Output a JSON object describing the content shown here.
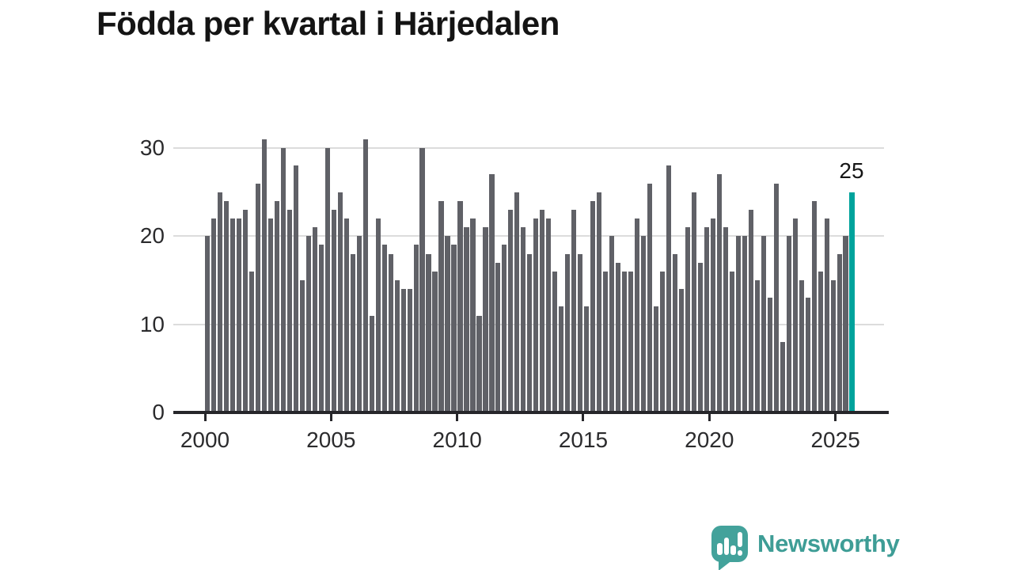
{
  "title": "Födda per kvartal i Härjedalen",
  "chart_data": {
    "type": "bar",
    "title": "Födda per kvartal i Härjedalen",
    "categories": [
      "2000-Q1",
      "2000-Q2",
      "2000-Q3",
      "2000-Q4",
      "2001-Q1",
      "2001-Q2",
      "2001-Q3",
      "2001-Q4",
      "2002-Q1",
      "2002-Q2",
      "2002-Q3",
      "2002-Q4",
      "2003-Q1",
      "2003-Q2",
      "2003-Q3",
      "2003-Q4",
      "2004-Q1",
      "2004-Q2",
      "2004-Q3",
      "2004-Q4",
      "2005-Q1",
      "2005-Q2",
      "2005-Q3",
      "2005-Q4",
      "2006-Q1",
      "2006-Q2",
      "2006-Q3",
      "2006-Q4",
      "2007-Q1",
      "2007-Q2",
      "2007-Q3",
      "2007-Q4",
      "2008-Q1",
      "2008-Q2",
      "2008-Q3",
      "2008-Q4",
      "2009-Q1",
      "2009-Q2",
      "2009-Q3",
      "2009-Q4",
      "2010-Q1",
      "2010-Q2",
      "2010-Q3",
      "2010-Q4",
      "2011-Q1",
      "2011-Q2",
      "2011-Q3",
      "2011-Q4",
      "2012-Q1",
      "2012-Q2",
      "2012-Q3",
      "2012-Q4",
      "2013-Q1",
      "2013-Q2",
      "2013-Q3",
      "2013-Q4",
      "2014-Q1",
      "2014-Q2",
      "2014-Q3",
      "2014-Q4",
      "2015-Q1",
      "2015-Q2",
      "2015-Q3",
      "2015-Q4",
      "2016-Q1",
      "2016-Q2",
      "2016-Q3",
      "2016-Q4",
      "2017-Q1",
      "2017-Q2",
      "2017-Q3",
      "2017-Q4",
      "2018-Q1",
      "2018-Q2",
      "2018-Q3",
      "2018-Q4",
      "2019-Q1",
      "2019-Q2",
      "2019-Q3",
      "2019-Q4",
      "2020-Q1",
      "2020-Q2",
      "2020-Q3",
      "2020-Q4",
      "2021-Q1",
      "2021-Q2",
      "2021-Q3",
      "2021-Q4",
      "2022-Q1",
      "2022-Q2",
      "2022-Q3",
      "2022-Q4",
      "2023-Q1",
      "2023-Q2",
      "2023-Q3",
      "2023-Q4",
      "2024-Q1",
      "2024-Q2",
      "2024-Q3",
      "2024-Q4",
      "2025-Q1",
      "2025-Q2",
      "2025-Q3"
    ],
    "values": [
      20,
      22,
      25,
      24,
      22,
      22,
      23,
      16,
      26,
      31,
      22,
      24,
      30,
      23,
      28,
      15,
      20,
      21,
      19,
      30,
      23,
      25,
      22,
      18,
      20,
      31,
      11,
      22,
      19,
      18,
      15,
      14,
      14,
      19,
      30,
      18,
      16,
      24,
      20,
      19,
      24,
      21,
      22,
      11,
      21,
      27,
      17,
      19,
      23,
      25,
      21,
      18,
      22,
      23,
      22,
      16,
      12,
      18,
      23,
      18,
      12,
      24,
      25,
      16,
      20,
      17,
      16,
      16,
      22,
      20,
      26,
      12,
      16,
      28,
      18,
      14,
      21,
      25,
      17,
      21,
      22,
      27,
      21,
      16,
      20,
      20,
      23,
      15,
      20,
      13,
      26,
      8,
      20,
      22,
      15,
      13,
      24,
      16,
      22,
      15,
      18,
      20,
      25
    ],
    "highlight_index": 102,
    "annotation_label": "25",
    "y_ticks": [
      0,
      10,
      20,
      30
    ],
    "y_gridlines": [
      10,
      20,
      30
    ],
    "x_tick_labels": [
      "2000",
      "2005",
      "2010",
      "2015",
      "2020",
      "2025"
    ],
    "ylim": [
      0,
      31
    ],
    "xlabel": "",
    "ylabel": "",
    "legend": "none",
    "grid": "horizontal"
  },
  "colors": {
    "bar": "#606167",
    "highlight": "#00a39c",
    "gridline": "#dcdcdc",
    "axis": "#26262a",
    "tick_label": "#2b2b2d",
    "annotation": "#161616",
    "brand": "#3e9d96"
  },
  "branding": {
    "wordmark": "Newsworthy"
  }
}
